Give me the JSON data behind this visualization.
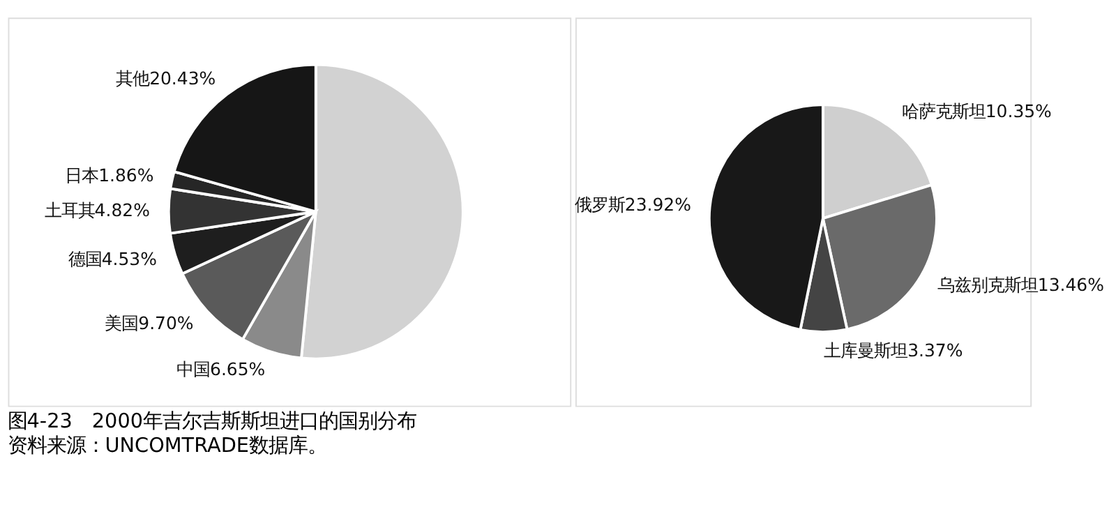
{
  "chart_data": [
    {
      "type": "pie",
      "categories": [
        null,
        "中国",
        "美国",
        "德国",
        "土耳其",
        "日本",
        "其他"
      ],
      "values": [
        51.1,
        6.65,
        9.7,
        4.53,
        4.82,
        1.86,
        20.43
      ],
      "value_labels": [
        null,
        "6.65%",
        "9.70%",
        "4.53%",
        "4.82%",
        "1.86%",
        "20.43%"
      ],
      "colors": [
        "#d2d2d2",
        "#8a8a8a",
        "#5a5a5a",
        "#1e1e1e",
        "#333333",
        "#262626",
        "#161616"
      ],
      "annotations": [
        "图4-23　2000年吉尔吉斯斯坦进口的国别分布",
        "资料来源：UNCOMTRADE数据库。"
      ]
    },
    {
      "type": "pie",
      "categories": [
        "哈萨克斯坦",
        "乌兹别克斯坦",
        "土库曼斯坦",
        "俄罗斯"
      ],
      "values": [
        10.35,
        13.46,
        3.37,
        23.92
      ],
      "value_labels": [
        "10.35%",
        "13.46%",
        "3.37%",
        "23.92%"
      ],
      "colors": [
        "#cfcfcf",
        "#6a6a6a",
        "#444444",
        "#181818"
      ]
    }
  ]
}
